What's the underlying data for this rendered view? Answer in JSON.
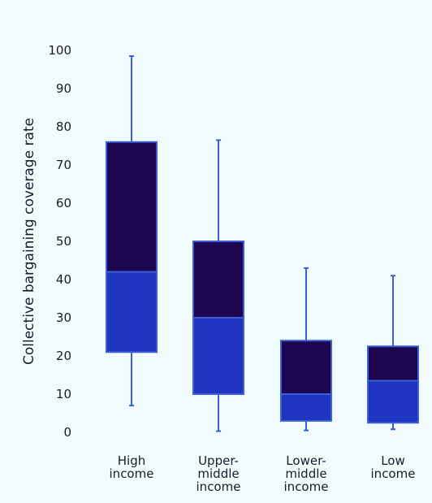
{
  "chart_data": {
    "type": "box",
    "title": "",
    "xlabel": "",
    "ylabel": "Collective bargaining coverage rate",
    "ylim": [
      0,
      100
    ],
    "yticks": [
      0,
      10,
      20,
      30,
      40,
      50,
      60,
      70,
      80,
      90,
      100
    ],
    "grid": false,
    "categories": [
      [
        "High",
        "income"
      ],
      [
        "Upper-",
        "middle",
        "income"
      ],
      [
        "Lower-",
        "middle",
        "income"
      ],
      [
        "Low",
        "income"
      ]
    ],
    "boxes": [
      {
        "min": 7,
        "q1": 21,
        "median": 42,
        "q3": 76,
        "max": 98.5
      },
      {
        "min": 0.3,
        "q1": 10,
        "median": 30,
        "q3": 50,
        "max": 76.5
      },
      {
        "min": 0.5,
        "q1": 3,
        "median": 10,
        "q3": 24,
        "max": 43
      },
      {
        "min": 0.8,
        "q1": 2.5,
        "median": 13.5,
        "q3": 22.5,
        "max": 41
      }
    ],
    "colors": {
      "upper_box": "#1e0550",
      "lower_box": "#1f35c0",
      "outline": "#3a5fd6",
      "whisker": "#3a5fd6",
      "background": "#f2fbfc"
    }
  }
}
